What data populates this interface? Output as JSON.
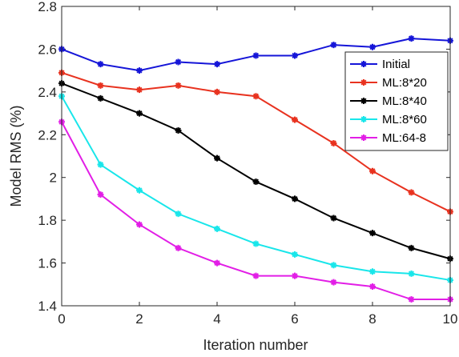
{
  "chart_data": {
    "type": "line",
    "xlabel": "Iteration number",
    "ylabel": "Model RMS (%)",
    "xlim": [
      0,
      10
    ],
    "ylim": [
      1.4,
      2.8
    ],
    "xticks": [
      0,
      2,
      4,
      6,
      8,
      10
    ],
    "yticks": [
      1.4,
      1.6,
      1.8,
      2,
      2.2,
      2.4,
      2.6,
      2.8
    ],
    "x": [
      0,
      1,
      2,
      3,
      4,
      5,
      6,
      7,
      8,
      9,
      10
    ],
    "legend_position": "top-right",
    "grid": false,
    "series": [
      {
        "name": "Initial",
        "color": "#1515d8",
        "values": [
          2.6,
          2.53,
          2.5,
          2.54,
          2.53,
          2.57,
          2.57,
          2.62,
          2.61,
          2.65,
          2.64
        ]
      },
      {
        "name": "ML:8*20",
        "color": "#e8321f",
        "values": [
          2.49,
          2.43,
          2.41,
          2.43,
          2.4,
          2.38,
          2.27,
          2.16,
          2.03,
          1.93,
          1.84
        ]
      },
      {
        "name": "ML:8*40",
        "color": "#000000",
        "values": [
          2.44,
          2.37,
          2.3,
          2.22,
          2.09,
          1.98,
          1.9,
          1.81,
          1.74,
          1.67,
          1.62
        ]
      },
      {
        "name": "ML:8*60",
        "color": "#19e6ea",
        "values": [
          2.38,
          2.06,
          1.94,
          1.83,
          1.76,
          1.69,
          1.64,
          1.59,
          1.56,
          1.55,
          1.52
        ]
      },
      {
        "name": "ML:64-8",
        "color": "#e21ee6",
        "values": [
          2.26,
          1.92,
          1.78,
          1.67,
          1.6,
          1.54,
          1.54,
          1.51,
          1.49,
          1.43,
          1.43
        ]
      }
    ]
  }
}
